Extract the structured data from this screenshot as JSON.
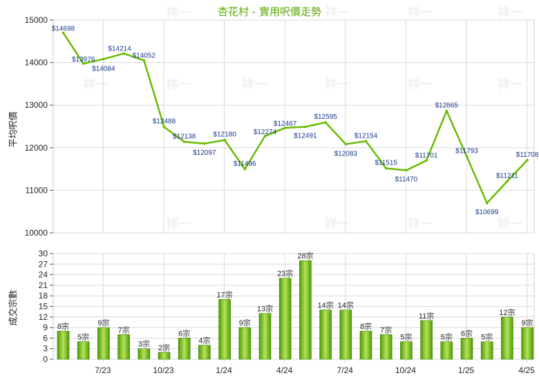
{
  "chart_data": [
    {
      "type": "line",
      "title": "杏花村 - 實用呎價走勢",
      "ylabel": "平均呎價",
      "ylim": [
        10000,
        15000
      ],
      "yticks": [
        10000,
        11000,
        12000,
        13000,
        14000,
        15000
      ],
      "grid": true,
      "series": [
        {
          "values": [
            14698,
            13976,
            14084,
            14214,
            14052,
            12488,
            12138,
            12097,
            12180,
            11496,
            12274,
            12467,
            12491,
            12595,
            12083,
            12154,
            11515,
            11470,
            11701,
            12865,
            11793,
            10699,
            11211,
            11708
          ],
          "labels": [
            "$14698",
            "$13976",
            "$14084",
            "$14214",
            "$14052",
            "$12488",
            "$12138",
            "$12097",
            "$12180",
            "$11496",
            "$12274",
            "$12467",
            "$12491",
            "$12595",
            "$12083",
            "$12154",
            "$11515",
            "$11470",
            "$11701",
            "$12865",
            "$11793",
            "$10699",
            "$11211",
            "$11708"
          ]
        }
      ]
    },
    {
      "type": "bar",
      "ylabel": "成交宗數",
      "ylim": [
        0,
        30
      ],
      "yticks": [
        0,
        3,
        6,
        9,
        12,
        15,
        18,
        21,
        24,
        27,
        30
      ],
      "grid": true,
      "x_tick_labels": [
        "7/23",
        "10/23",
        "1/24",
        "4/24",
        "7/24",
        "10/24",
        "1/25",
        "4/25"
      ],
      "values": [
        8,
        5,
        9,
        7,
        3,
        2,
        6,
        4,
        17,
        9,
        13,
        23,
        28,
        14,
        14,
        8,
        7,
        5,
        11,
        5,
        6,
        5,
        12,
        9
      ],
      "labels": [
        "8宗",
        "5宗",
        "9宗",
        "7宗",
        "3宗",
        "2宗",
        "6宗",
        "4宗",
        "17宗",
        "9宗",
        "13宗",
        "23宗",
        "28宗",
        "14宗",
        "14宗",
        "8宗",
        "7宗",
        "5宗",
        "11宗",
        "5宗",
        "6宗",
        "5宗",
        "12宗",
        "9宗"
      ]
    }
  ],
  "watermark": "祥一",
  "colors": {
    "line": "#66bb00",
    "bar_dark": "#4e9a06",
    "bar_light": "#b6e35a",
    "title": "#5aa800",
    "label": "#1a3a8a",
    "grid": "#d8d8d8",
    "axis": "#555555"
  }
}
